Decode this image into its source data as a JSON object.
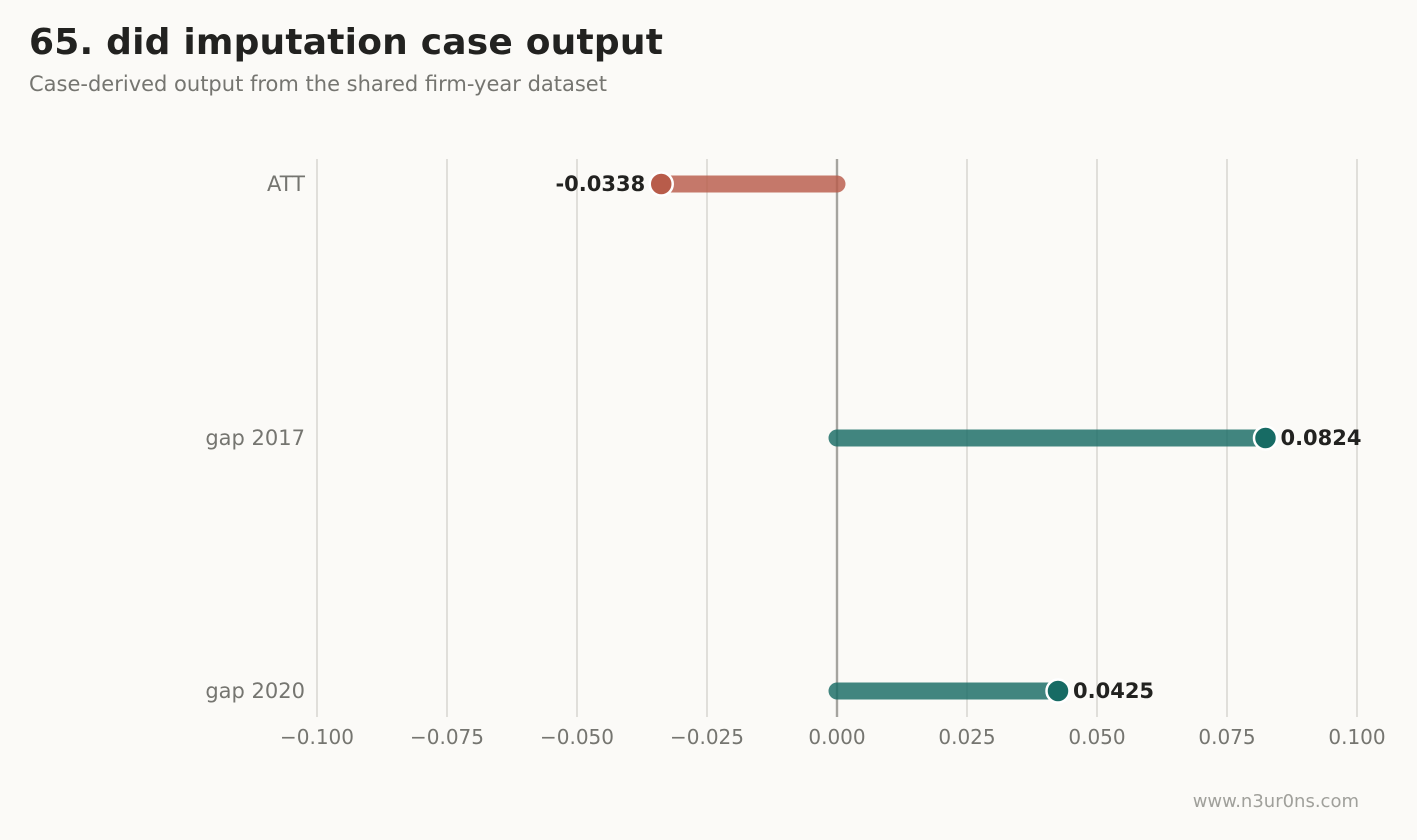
{
  "header": {
    "title": "65. did imputation case output",
    "subtitle": "Case-derived output from the shared firm-year dataset"
  },
  "footer": {
    "watermark": "www.n3ur0ns.com"
  },
  "chart_data": {
    "type": "bar",
    "orientation": "horizontal",
    "style": "lollipop",
    "categories": [
      "ATT",
      "gap 2017",
      "gap 2020"
    ],
    "values": [
      -0.0338,
      0.0824,
      0.0425
    ],
    "value_labels": [
      "-0.0338",
      "0.0824",
      "0.0425"
    ],
    "xlim": [
      -0.1,
      0.1
    ],
    "xticks": [
      -0.1,
      -0.075,
      -0.05,
      -0.025,
      0.0,
      0.025,
      0.05,
      0.075,
      0.1
    ],
    "xtick_labels": [
      "−0.100",
      "−0.075",
      "−0.050",
      "−0.025",
      "0.000",
      "0.025",
      "0.050",
      "0.075",
      "0.100"
    ],
    "grid": "vertical",
    "zero_line": true,
    "colors": {
      "negative": "#b85c4a",
      "positive": "#176b64",
      "grid": "#d9d8d2",
      "zero_line": "#a5a49f",
      "tick_text": "#757570",
      "value_text": "#222220"
    }
  }
}
